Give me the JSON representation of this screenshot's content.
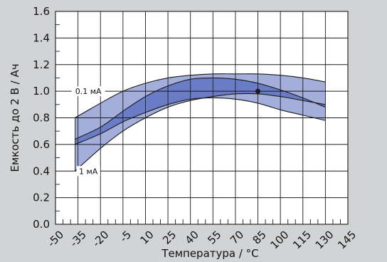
{
  "chart_data": {
    "type": "area",
    "title": "",
    "xlabel": "Температура / °C",
    "ylabel": "Емкость до 2 В / Ач",
    "xlim": [
      -50,
      145
    ],
    "ylim": [
      0.0,
      1.6
    ],
    "x_ticks": [
      -50,
      -35,
      -20,
      -5,
      10,
      25,
      40,
      55,
      70,
      85,
      100,
      115,
      130,
      145
    ],
    "y_ticks": [
      "0.0",
      "0.2",
      "0.4",
      "0.6",
      "0.8",
      "1.0",
      "1.2",
      "1.4",
      "1.6"
    ],
    "grid": true,
    "colors": {
      "background": "#d2d3d5",
      "plot_area": "#ffffff",
      "outer_band": "#a3aedb",
      "inner_band": "#6a7cc6",
      "line": "#1a1a1a",
      "grid": "#1a1a1a"
    },
    "series": [
      {
        "name": "0.1 мА",
        "upper": [
          [
            -37,
            0.8
          ],
          [
            -20,
            0.91
          ],
          [
            -5,
            1.0
          ],
          [
            10,
            1.06
          ],
          [
            25,
            1.1
          ],
          [
            40,
            1.12
          ],
          [
            55,
            1.13
          ],
          [
            70,
            1.13
          ],
          [
            85,
            1.13
          ],
          [
            100,
            1.12
          ],
          [
            115,
            1.1
          ],
          [
            130,
            1.07
          ]
        ],
        "lower": [
          [
            -37,
            0.6
          ],
          [
            -20,
            0.68
          ],
          [
            -5,
            0.77
          ],
          [
            10,
            0.84
          ],
          [
            25,
            0.9
          ],
          [
            40,
            0.94
          ],
          [
            55,
            0.95
          ],
          [
            70,
            0.94
          ],
          [
            85,
            0.91
          ],
          [
            100,
            0.86
          ],
          [
            115,
            0.82
          ],
          [
            130,
            0.78
          ]
        ]
      },
      {
        "name": "1 мА",
        "upper": [
          [
            -37,
            0.64
          ],
          [
            -20,
            0.73
          ],
          [
            -5,
            0.85
          ],
          [
            10,
            0.96
          ],
          [
            25,
            1.04
          ],
          [
            40,
            1.09
          ],
          [
            55,
            1.1
          ],
          [
            70,
            1.09
          ],
          [
            85,
            1.06
          ],
          [
            100,
            1.01
          ],
          [
            115,
            0.95
          ],
          [
            130,
            0.88
          ]
        ],
        "lower": [
          [
            -37,
            0.4
          ],
          [
            -20,
            0.57
          ],
          [
            -5,
            0.7
          ],
          [
            10,
            0.8
          ],
          [
            25,
            0.88
          ],
          [
            40,
            0.93
          ],
          [
            55,
            0.96
          ],
          [
            70,
            0.98
          ],
          [
            85,
            0.98
          ],
          [
            100,
            0.96
          ],
          [
            115,
            0.93
          ],
          [
            130,
            0.9
          ]
        ]
      }
    ],
    "highlight_point": {
      "x": 85,
      "y": 1.0
    },
    "annotations": [
      {
        "text": "0.1 мА",
        "x": -30,
        "y": 1.0
      },
      {
        "text": "1 мА",
        "x": -30,
        "y": 0.4
      }
    ]
  }
}
